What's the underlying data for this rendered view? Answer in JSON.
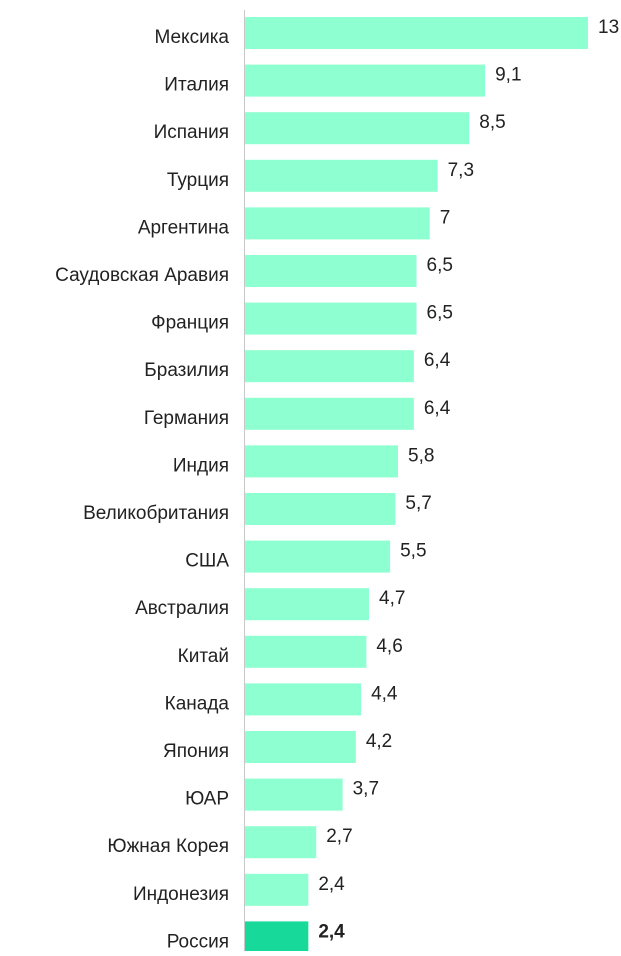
{
  "chart_data": {
    "type": "barh",
    "categories": [
      "Мексика",
      "Италия",
      "Испания",
      "Турция",
      "Аргентина",
      "Саудовская Аравия",
      "Франция",
      "Бразилия",
      "Германия",
      "Индия",
      "Великобритания",
      "США",
      "Австралия",
      "Китай",
      "Канада",
      "Япония",
      "ЮАР",
      "Южная Корея",
      "Индонезия",
      "Россия"
    ],
    "values": [
      13,
      9.1,
      8.5,
      7.3,
      7,
      6.5,
      6.5,
      6.4,
      6.4,
      5.8,
      5.7,
      5.5,
      4.7,
      4.6,
      4.4,
      4.2,
      3.7,
      2.7,
      2.4,
      2.4
    ],
    "value_labels": [
      "13",
      "9,1",
      "8,5",
      "7,3",
      "7",
      "6,5",
      "6,5",
      "6,4",
      "6,4",
      "5,8",
      "5,7",
      "5,5",
      "4,7",
      "4,6",
      "4,4",
      "4,2",
      "3,7",
      "2,7",
      "2,4",
      "2,4"
    ],
    "color": "#8effd0",
    "highlight_index": 19,
    "highlight_color": "#17d99a"
  }
}
